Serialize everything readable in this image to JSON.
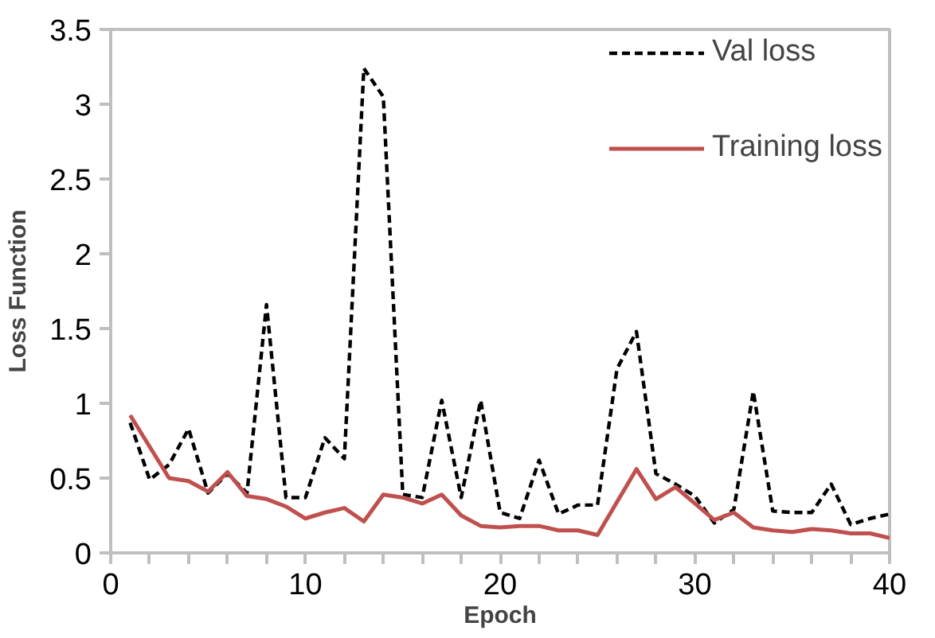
{
  "chart_data": {
    "type": "line",
    "xlabel": "Epoch",
    "ylabel": "Loss Function",
    "x": [
      1,
      2,
      3,
      4,
      5,
      6,
      7,
      8,
      9,
      10,
      11,
      12,
      13,
      14,
      15,
      16,
      17,
      18,
      19,
      20,
      21,
      22,
      23,
      24,
      25,
      26,
      27,
      28,
      29,
      30,
      31,
      32,
      33,
      34,
      35,
      36,
      37,
      38,
      39,
      40
    ],
    "series": [
      {
        "name": "Val loss",
        "color": "#000000",
        "line_style": "dashed",
        "values": [
          0.87,
          0.49,
          0.59,
          0.83,
          0.4,
          0.53,
          0.4,
          1.66,
          0.37,
          0.37,
          0.77,
          0.63,
          3.24,
          3.05,
          0.39,
          0.37,
          1.02,
          0.37,
          1.02,
          0.27,
          0.23,
          0.62,
          0.26,
          0.32,
          0.32,
          1.23,
          1.48,
          0.53,
          0.46,
          0.38,
          0.2,
          0.29,
          1.08,
          0.28,
          0.27,
          0.27,
          0.46,
          0.19,
          0.23,
          0.26
        ]
      },
      {
        "name": "Training loss",
        "color": "#c0504d",
        "line_style": "solid",
        "values": [
          0.92,
          0.71,
          0.5,
          0.48,
          0.41,
          0.54,
          0.38,
          0.36,
          0.31,
          0.23,
          0.27,
          0.3,
          0.21,
          0.39,
          0.37,
          0.33,
          0.39,
          0.25,
          0.18,
          0.17,
          0.18,
          0.18,
          0.15,
          0.15,
          0.12,
          0.34,
          0.56,
          0.36,
          0.44,
          0.33,
          0.22,
          0.27,
          0.17,
          0.15,
          0.14,
          0.16,
          0.15,
          0.13,
          0.13,
          0.1
        ]
      }
    ],
    "xlim": [
      0,
      40
    ],
    "xticks": [
      0,
      {
        "value": 2,
        "label": null
      },
      {
        "value": 4,
        "label": null
      },
      {
        "value": 6,
        "label": null
      },
      {
        "value": 8,
        "label": null
      },
      10,
      {
        "value": 12,
        "label": null
      },
      {
        "value": 14,
        "label": null
      },
      {
        "value": 16,
        "label": null
      },
      {
        "value": 18,
        "label": null
      },
      20,
      {
        "value": 22,
        "label": null
      },
      {
        "value": 24,
        "label": null
      },
      {
        "value": 26,
        "label": null
      },
      {
        "value": 28,
        "label": null
      },
      30,
      {
        "value": 32,
        "label": null
      },
      {
        "value": 34,
        "label": null
      },
      {
        "value": 36,
        "label": null
      },
      {
        "value": 38,
        "label": null
      },
      40
    ],
    "ylim": [
      0,
      3.5
    ],
    "yticks": [
      0,
      0.5,
      1,
      1.5,
      2,
      2.5,
      3,
      3.5
    ],
    "grid": false,
    "legend": "top right",
    "marker": "none"
  }
}
